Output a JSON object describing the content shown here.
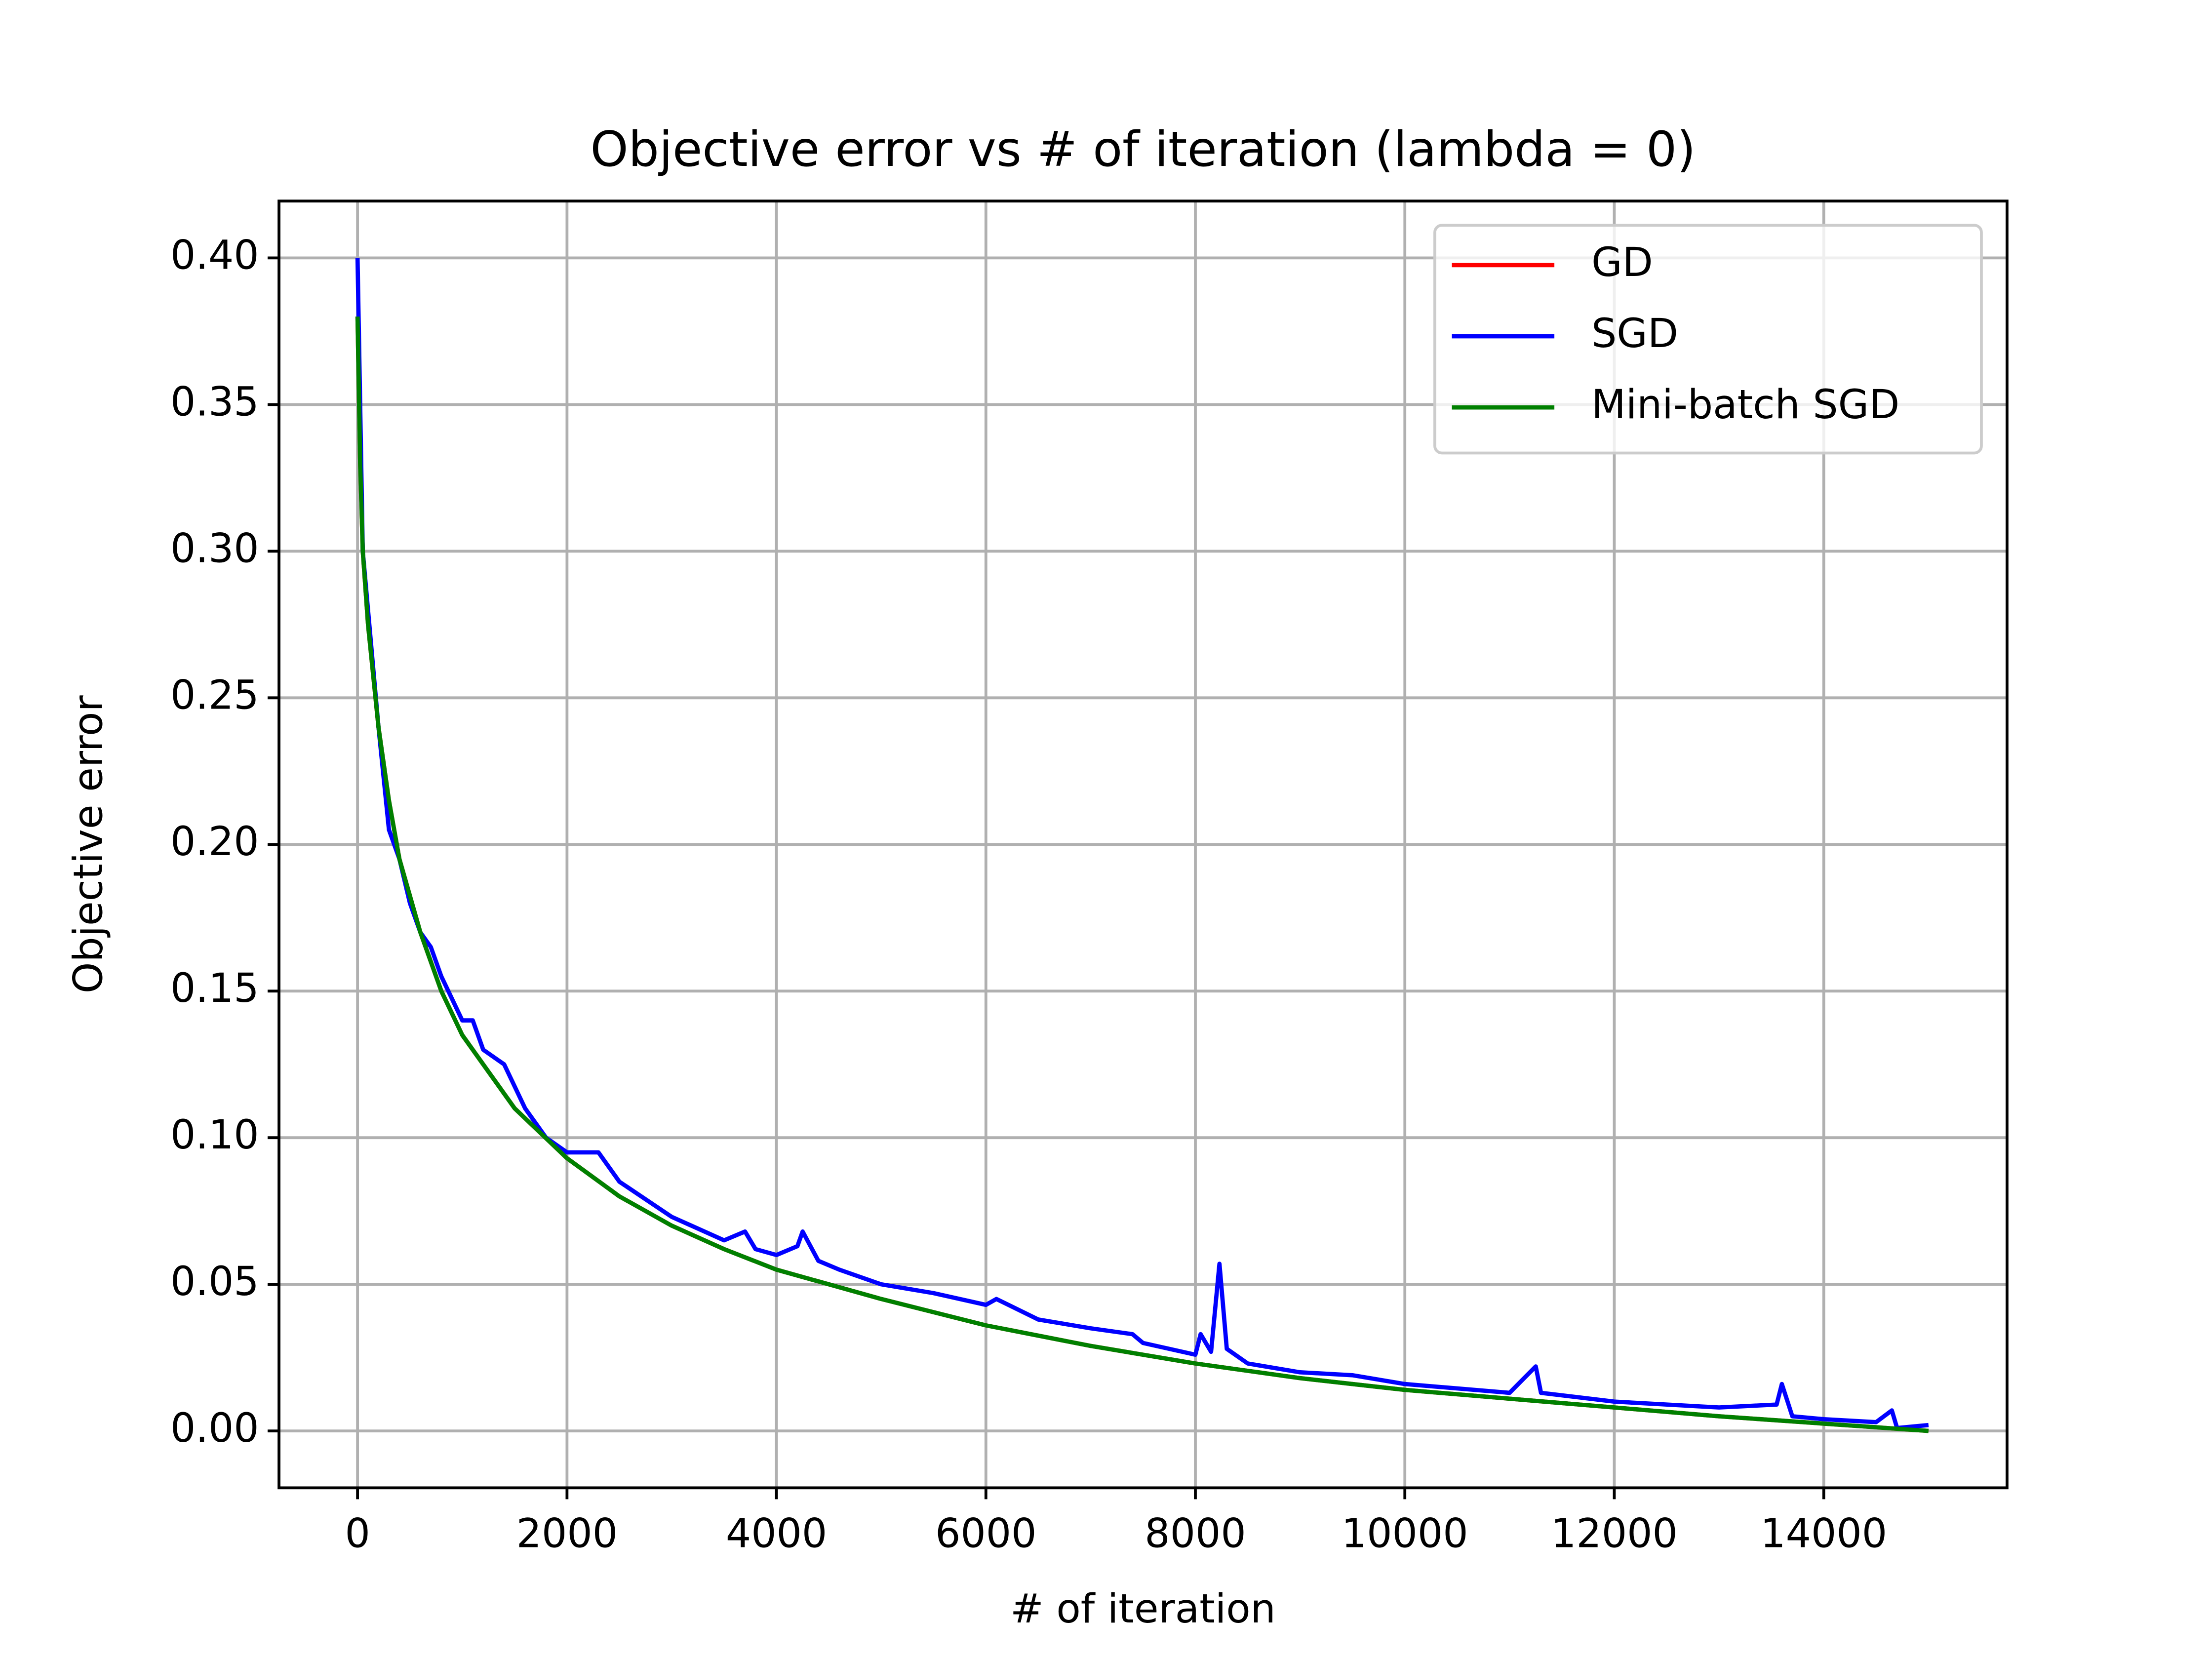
{
  "chart_data": {
    "type": "line",
    "title": "Objective error vs # of iteration (lambda = 0)",
    "xlabel": "# of iteration",
    "ylabel": "Objective error",
    "x": [
      0,
      25,
      50,
      100,
      200,
      300,
      400,
      600,
      800,
      1000,
      1500,
      2000,
      2500,
      3000,
      3500,
      4000,
      5000,
      6000,
      7000,
      8000,
      9000,
      10000,
      11000,
      12000,
      13000,
      14000,
      15000
    ],
    "series": [
      {
        "name": "GD",
        "color": "#ff0000",
        "values": [
          0.38,
          0.33,
          0.3,
          0.275,
          0.24,
          0.215,
          0.195,
          0.17,
          0.15,
          0.135,
          0.11,
          0.093,
          0.08,
          0.07,
          0.062,
          0.055,
          0.045,
          0.036,
          0.029,
          0.023,
          0.018,
          0.014,
          0.011,
          0.008,
          0.005,
          0.0025,
          0
        ]
      },
      {
        "name": "SGD",
        "color": "#0000ff",
        "x": [
          0,
          20,
          50,
          100,
          200,
          300,
          400,
          500,
          600,
          700,
          800,
          1000,
          1100,
          1200,
          1400,
          1600,
          1800,
          2000,
          2300,
          2500,
          3000,
          3500,
          3700,
          3800,
          4000,
          4200,
          4250,
          4400,
          4600,
          5000,
          5500,
          6000,
          6100,
          6500,
          7000,
          7400,
          7500,
          8000,
          8050,
          8150,
          8230,
          8300,
          8500,
          9000,
          9500,
          10000,
          11000,
          11250,
          11300,
          12000,
          13000,
          13550,
          13600,
          13700,
          14000,
          14500,
          14650,
          14700,
          15000
        ],
        "values": [
          0.4,
          0.36,
          0.3,
          0.28,
          0.24,
          0.205,
          0.195,
          0.18,
          0.17,
          0.165,
          0.155,
          0.14,
          0.14,
          0.13,
          0.125,
          0.11,
          0.1,
          0.095,
          0.095,
          0.085,
          0.073,
          0.065,
          0.068,
          0.062,
          0.06,
          0.063,
          0.068,
          0.058,
          0.055,
          0.05,
          0.047,
          0.043,
          0.045,
          0.038,
          0.035,
          0.033,
          0.03,
          0.026,
          0.033,
          0.027,
          0.057,
          0.028,
          0.023,
          0.02,
          0.019,
          0.016,
          0.013,
          0.022,
          0.013,
          0.01,
          0.008,
          0.009,
          0.016,
          0.005,
          0.004,
          0.003,
          0.007,
          0.001,
          0.002
        ]
      },
      {
        "name": "Mini-batch SGD",
        "color": "#008000",
        "values": [
          0.38,
          0.33,
          0.3,
          0.275,
          0.24,
          0.215,
          0.195,
          0.17,
          0.15,
          0.135,
          0.11,
          0.093,
          0.08,
          0.07,
          0.062,
          0.055,
          0.045,
          0.036,
          0.029,
          0.023,
          0.018,
          0.014,
          0.011,
          0.008,
          0.005,
          0.0025,
          0
        ]
      }
    ],
    "xlim": [
      -750,
      15750
    ],
    "ylim": [
      -0.0194,
      0.4194
    ],
    "xticks": [
      0,
      2000,
      4000,
      6000,
      8000,
      10000,
      12000,
      14000
    ],
    "yticks": [
      {
        "value": 0,
        "label": "0.00"
      },
      {
        "value": 0.05,
        "label": "0.05"
      },
      {
        "value": 0.1,
        "label": "0.10"
      },
      {
        "value": 0.15,
        "label": "0.15"
      },
      {
        "value": 0.2,
        "label": "0.20"
      },
      {
        "value": 0.25,
        "label": "0.25"
      },
      {
        "value": 0.3,
        "label": "0.30"
      },
      {
        "value": 0.35,
        "label": "0.35"
      },
      {
        "value": 0.4,
        "label": "0.40"
      }
    ],
    "grid": true,
    "legend": "upper right"
  }
}
